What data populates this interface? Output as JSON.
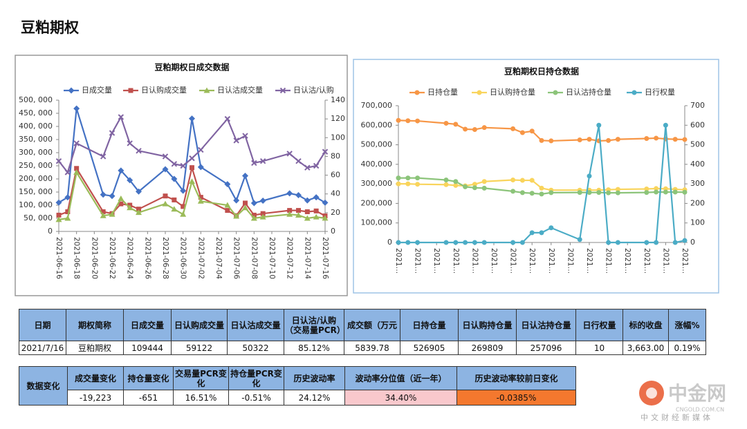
{
  "title": "豆粕期权",
  "chart_data": [
    {
      "type": "line",
      "title": "豆粕期权日成交数据",
      "x": [
        "2021-06-16",
        "2021-06-17",
        "2021-06-18",
        "2021-06-21",
        "2021-06-22",
        "2021-06-23",
        "2021-06-24",
        "2021-06-25",
        "2021-06-28",
        "2021-06-29",
        "2021-06-30",
        "2021-07-01",
        "2021-07-02",
        "2021-07-05",
        "2021-07-06",
        "2021-07-07",
        "2021-07-08",
        "2021-07-09",
        "2021-07-12",
        "2021-07-13",
        "2021-07-14",
        "2021-07-15",
        "2021-07-16"
      ],
      "xlim": [
        "2021-06-16",
        "2021-07-16"
      ],
      "xticks": [
        "2021-06-16",
        "2021-06-18",
        "2021-06-20",
        "2021-06-22",
        "2021-06-24",
        "2021-06-26",
        "2021-06-28",
        "2021-06-30",
        "2021-07-02",
        "2021-07-04",
        "2021-07-06",
        "2021-07-08",
        "2021-07-10",
        "2021-07-12",
        "2021-07-14",
        "2021-07-16"
      ],
      "ylim": [
        0,
        500000
      ],
      "yticks": [
        0,
        {
          "value": 50000,
          "label": "50, 000"
        },
        {
          "value": 100000,
          "label": "100, 000"
        },
        {
          "value": 150000,
          "label": "150, 000"
        },
        {
          "value": 200000,
          "label": "200, 000"
        },
        {
          "value": 250000,
          "label": "250, 000"
        },
        {
          "value": 300000,
          "label": "300, 000"
        },
        {
          "value": 350000,
          "label": "350, 000"
        },
        {
          "value": 400000,
          "label": "400, 000"
        },
        {
          "value": 450000,
          "label": "450, 000"
        },
        {
          "value": 500000,
          "label": "500, 000"
        }
      ],
      "y2lim": [
        0,
        140
      ],
      "y2ticks": [
        0,
        20,
        40,
        60,
        80,
        100,
        120,
        140
      ],
      "grid": false,
      "legend": "top",
      "series": [
        {
          "name": "日成交量",
          "color": "#4472c4",
          "marker": "diamond",
          "values": [
            110000,
            130000,
            468000,
            140000,
            135000,
            232000,
            195000,
            152000,
            237000,
            200000,
            155000,
            430000,
            245000,
            180000,
            118000,
            212000,
            108000,
            117000,
            145000,
            138000,
            118000,
            130000,
            109444
          ]
        },
        {
          "name": "日认购成交量",
          "color": "#c0504d",
          "marker": "square",
          "values": [
            62000,
            75000,
            240000,
            75000,
            68000,
            105000,
            100000,
            85000,
            135000,
            120000,
            95000,
            243000,
            130000,
            80000,
            60000,
            108000,
            62000,
            68000,
            80000,
            80000,
            75000,
            78000,
            59122
          ]
        },
        {
          "name": "日认沽成交量",
          "color": "#9bbb59",
          "marker": "triangle",
          "values": [
            45000,
            50000,
            225000,
            60000,
            65000,
            125000,
            90000,
            72000,
            105000,
            85000,
            65000,
            190000,
            115000,
            100000,
            58000,
            90000,
            50000,
            55000,
            65000,
            62000,
            50000,
            55000,
            50322
          ]
        },
        {
          "name": "日认沽/认购",
          "color": "#8064a2",
          "marker": "cross",
          "axis": "y2",
          "values": [
            75,
            63,
            94,
            80,
            105,
            122,
            94,
            86,
            80,
            72,
            70,
            78,
            87,
            120,
            97,
            102,
            73,
            75,
            83,
            75,
            68,
            70,
            85
          ]
        }
      ]
    },
    {
      "type": "line",
      "title": "豆粕期权日持仓数据",
      "x": [
        "2021-06-16",
        "2021-06-17",
        "2021-06-18",
        "2021-06-21",
        "2021-06-22",
        "2021-06-23",
        "2021-06-24",
        "2021-06-25",
        "2021-06-28",
        "2021-06-29",
        "2021-06-30",
        "2021-07-01",
        "2021-07-02",
        "2021-07-05",
        "2021-07-06",
        "2021-07-07",
        "2021-07-08",
        "2021-07-09",
        "2021-07-12",
        "2021-07-13",
        "2021-07-14",
        "2021-07-15",
        "2021-07-16"
      ],
      "xlim": [
        "2021-06-16",
        "2021-07-16"
      ],
      "xticks": [
        {
          "value": "2021-06-16",
          "label": "2021…"
        },
        {
          "value": "2021-06-18",
          "label": "2021…"
        },
        {
          "value": "2021-06-20",
          "label": "2021…"
        },
        {
          "value": "2021-06-22",
          "label": "2021…"
        },
        {
          "value": "2021-06-24",
          "label": "2021…"
        },
        {
          "value": "2021-06-26",
          "label": "2021…"
        },
        {
          "value": "2021-06-28",
          "label": "2021…"
        },
        {
          "value": "2021-06-30",
          "label": "2021…"
        },
        {
          "value": "2021-07-02",
          "label": "2021…"
        },
        {
          "value": "2021-07-04",
          "label": "2021…"
        },
        {
          "value": "2021-07-06",
          "label": "2021…"
        },
        {
          "value": "2021-07-08",
          "label": "2021…"
        },
        {
          "value": "2021-07-10",
          "label": "2021…"
        },
        {
          "value": "2021-07-12",
          "label": "2021…"
        },
        {
          "value": "2021-07-14",
          "label": "2021…"
        },
        {
          "value": "2021-07-16",
          "label": "2021…"
        }
      ],
      "ylim": [
        0,
        700000
      ],
      "yticks": [
        0,
        {
          "value": 100000,
          "label": "100,000"
        },
        {
          "value": 200000,
          "label": "200,000"
        },
        {
          "value": 300000,
          "label": "300,000"
        },
        {
          "value": 400000,
          "label": "400,000"
        },
        {
          "value": 500000,
          "label": "500,000"
        },
        {
          "value": 600000,
          "label": "600,000"
        },
        {
          "value": 700000,
          "label": "700,000"
        }
      ],
      "y2lim": [
        0,
        700
      ],
      "y2ticks": [
        0,
        100,
        200,
        300,
        400,
        500,
        600,
        700
      ],
      "grid": false,
      "legend": "top",
      "series": [
        {
          "name": "日持仓量",
          "color": "#f79646",
          "marker": "circle",
          "values": [
            625000,
            623000,
            622000,
            610000,
            605000,
            580000,
            578000,
            588000,
            582000,
            562000,
            570000,
            522000,
            520000,
            525000,
            528000,
            520000,
            522000,
            528000,
            532000,
            534000,
            530000,
            528000,
            526905
          ]
        },
        {
          "name": "日认购持仓量",
          "color": "#f9d45c",
          "marker": "circle",
          "values": [
            300000,
            300000,
            298000,
            296000,
            292000,
            290000,
            298000,
            312000,
            320000,
            318000,
            318000,
            278000,
            268000,
            268000,
            268000,
            268000,
            270000,
            272000,
            274000,
            276000,
            275000,
            272000,
            269809
          ]
        },
        {
          "name": "日认沽持仓量",
          "color": "#8cc47a",
          "marker": "circle",
          "values": [
            330000,
            330000,
            330000,
            320000,
            312000,
            285000,
            280000,
            278000,
            262000,
            255000,
            252000,
            248000,
            255000,
            256000,
            256000,
            256000,
            254000,
            254000,
            256000,
            258000,
            258000,
            258000,
            257096
          ]
        },
        {
          "name": "日行权量",
          "color": "#4bacc6",
          "marker": "circle",
          "axis": "y2",
          "values": [
            0,
            0,
            0,
            0,
            0,
            0,
            0,
            0,
            0,
            0,
            50,
            50,
            75,
            15,
            340,
            600,
            0,
            0,
            0,
            0,
            600,
            0,
            10
          ]
        }
      ]
    }
  ],
  "table1": {
    "header": [
      "日期",
      "期权简称",
      "日成交量",
      "日认购成交量",
      "日认沽成交量",
      "日认沽/认购（交易量PCR）",
      "成交额（万元",
      "日持仓量",
      "日认购持仓量",
      "日认沽持仓量",
      "日行权量",
      "标的收盘",
      "涨幅%"
    ],
    "row": [
      "2021/7/16",
      "豆粕期权",
      "109444",
      "59122",
      "50322",
      "85.12%",
      "5839.78",
      "526905",
      "269809",
      "257096",
      "10",
      "3,663.00",
      "0.19%"
    ]
  },
  "table2": {
    "label": "数据变化",
    "header": [
      "成交量变化",
      "持仓量变化",
      "交易量PCR变化",
      "持仓量PCR变化",
      "历史波动率",
      "波动率分位值（近一年）",
      "历史波动率较前日变化"
    ],
    "row": [
      "-19,223",
      "-651",
      "16.51%",
      "-0.51%",
      "24.12%",
      "34.40%",
      "-0.0385%"
    ]
  },
  "watermark": {
    "name": "中金网",
    "site": "CNGOLD.COM.CN",
    "slogan": "中文财经新媒体"
  }
}
